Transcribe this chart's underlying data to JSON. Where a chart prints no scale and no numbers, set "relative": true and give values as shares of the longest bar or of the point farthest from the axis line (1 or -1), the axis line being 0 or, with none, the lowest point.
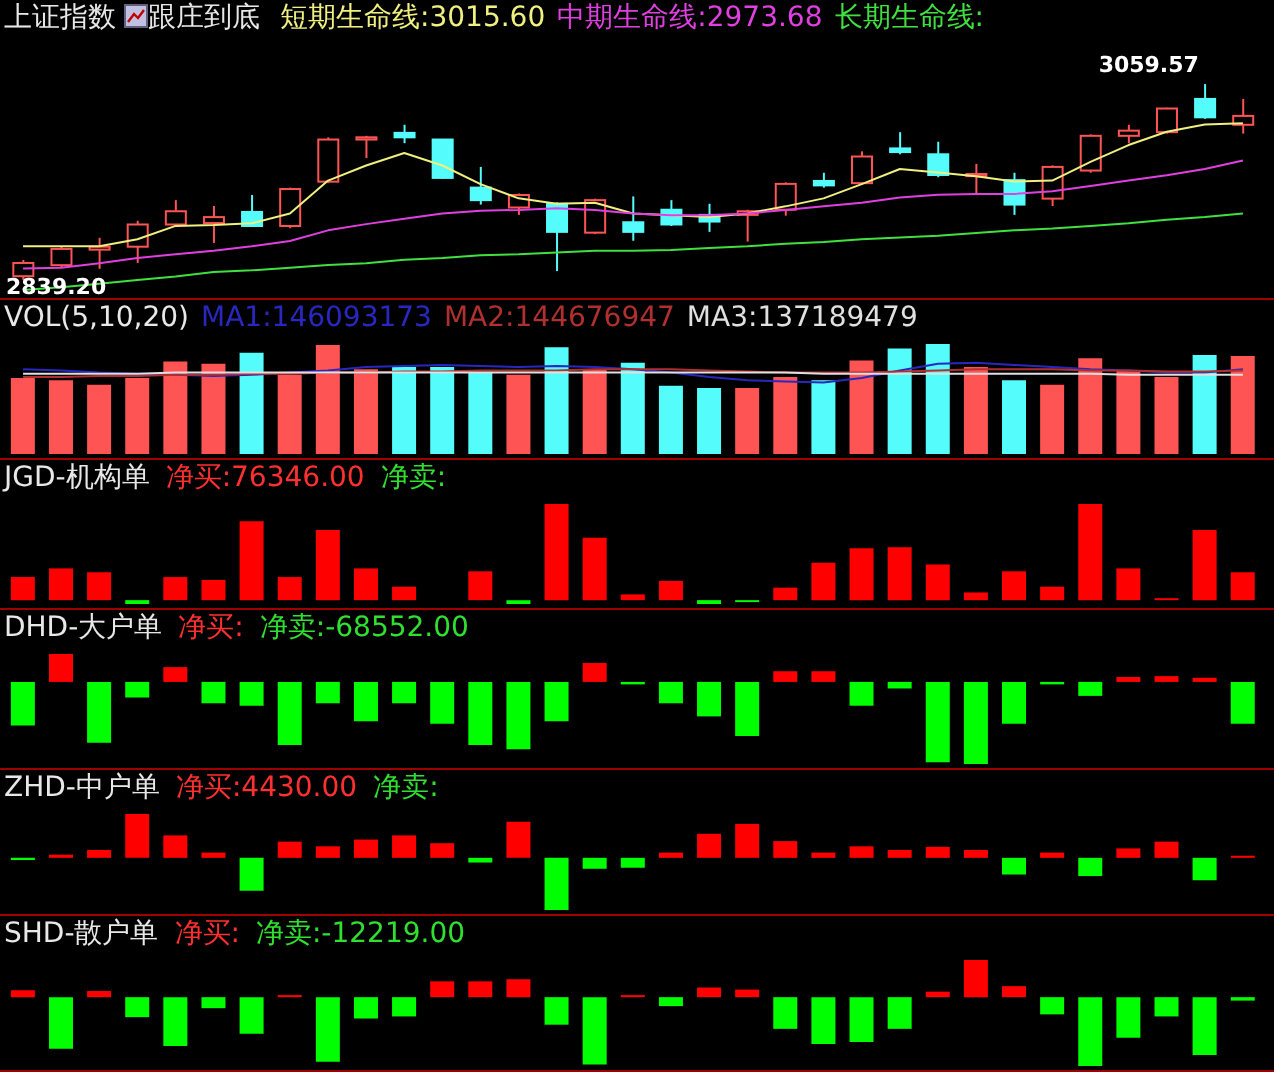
{
  "chart_data": [
    {
      "type": "candlestick",
      "title": "上证指数",
      "subtitle": "跟庄到底",
      "legend": "top",
      "categories": [
        null,
        null,
        null,
        null,
        null,
        null,
        null,
        null,
        null,
        null,
        null,
        null,
        null,
        null,
        null,
        null,
        null,
        null,
        null,
        null,
        null,
        null,
        null,
        null,
        null,
        null,
        null,
        null,
        null,
        null,
        null,
        null,
        null
      ],
      "ohlc": [
        [
          2843.4,
          2861.7,
          2839.2,
          2858.3
        ],
        [
          2855.8,
          2876.6,
          2853.3,
          2874.1
        ],
        [
          2873.3,
          2886.6,
          2851.7,
          2876.6
        ],
        [
          2876.6,
          2905.7,
          2858.3,
          2901.6
        ],
        [
          2901.6,
          2929.0,
          2899.9,
          2916.5
        ],
        [
          2903.2,
          2922.4,
          2880.8,
          2909.9
        ],
        [
          2915.7,
          2934.8,
          2899.9,
          2899.9
        ],
        [
          2899.9,
          2943.1,
          2897.4,
          2941.5
        ],
        [
          2949.8,
          2999.7,
          2948.1,
          2997.2
        ],
        [
          2997.2,
          3001.4,
          2976.4,
          2999.7
        ],
        [
          3004.7,
          3013.8,
          2993.1,
          2999.7
        ],
        [
          2997.2,
          2997.2,
          2953.1,
          2954.0
        ],
        [
          2943.1,
          2966.4,
          2924.0,
          2929.0
        ],
        [
          2920.7,
          2936.5,
          2912.4,
          2934.8
        ],
        [
          2924.9,
          2926.5,
          2849.2,
          2893.3
        ],
        [
          2892.4,
          2930.7,
          2890.8,
          2929.0
        ],
        [
          2904.1,
          2933.2,
          2883.3,
          2893.3
        ],
        [
          2918.2,
          2929.0,
          2899.9,
          2901.6
        ],
        [
          2912.4,
          2924.9,
          2893.3,
          2904.9
        ],
        [
          2912.4,
          2918.2,
          2882.4,
          2916.5
        ],
        [
          2918.2,
          2949.0,
          2911.5,
          2947.3
        ],
        [
          2950.6,
          2959.8,
          2943.1,
          2945.6
        ],
        [
          2948.1,
          2983.9,
          2946.5,
          2978.1
        ],
        [
          2987.2,
          3005.5,
          2980.6,
          2983.1
        ],
        [
          2980.6,
          2994.7,
          2954.8,
          2957.3
        ],
        [
          2956.0,
          2969.8,
          2934.8,
          2958.4
        ],
        [
          2951.5,
          2959.8,
          2912.4,
          2924.0
        ],
        [
          2930.7,
          2968.1,
          2922.4,
          2966.4
        ],
        [
          2962.3,
          3003.0,
          2959.8,
          3001.4
        ],
        [
          3001.4,
          3013.8,
          2993.1,
          3007.2
        ],
        [
          3005.5,
          3033.0,
          3003.9,
          3032.1
        ],
        [
          3042.9,
          3059.57,
          3020.5,
          3022.2
        ],
        [
          3013.8,
          3042.9,
          3003.9,
          3023.8
        ]
      ],
      "colors": [
        "#ff5454",
        "#ff5454",
        "#ff5454",
        "#ff5454",
        "#ff5454",
        "#ff5454",
        "#54fcfc",
        "#ff5454",
        "#ff5454",
        "#ff5454",
        "#54fcfc",
        "#54fcfc",
        "#54fcfc",
        "#ff5454",
        "#54fcfc",
        "#ff5454",
        "#54fcfc",
        "#54fcfc",
        "#54fcfc",
        "#ff5454",
        "#ff5454",
        "#54fcfc",
        "#ff5454",
        "#54fcfc",
        "#54fcfc",
        "#ff5454",
        "#54fcfc",
        "#ff5454",
        "#ff5454",
        "#ff5454",
        "#ff5454",
        "#54fcfc",
        "#ff5454"
      ],
      "series": [
        {
          "name": "短期生命线:3015.60",
          "type": "line",
          "color": "#f0f080",
          "values": [
            2877,
            2877,
            2877,
            2885,
            2900,
            2901,
            2903,
            2914,
            2951,
            2968,
            2982,
            2968,
            2947,
            2931,
            2925,
            2926,
            2914,
            2912,
            2910,
            2914,
            2922,
            2931,
            2947,
            2964,
            2960,
            2956,
            2950,
            2951,
            2972,
            2991,
            3006,
            3014,
            3015.6
          ]
        },
        {
          "name": "中期生命线:2973.68",
          "type": "line",
          "color": "#e040e0",
          "values": [
            2852,
            2853,
            2858,
            2864,
            2868,
            2872,
            2877,
            2883,
            2895,
            2902,
            2908,
            2914,
            2917,
            2918,
            2920,
            2918,
            2914,
            2912,
            2912,
            2914,
            2918,
            2922,
            2926,
            2932,
            2935,
            2936,
            2936,
            2939,
            2945,
            2951,
            2957,
            2964,
            2973.68
          ]
        },
        {
          "name": "长期生命线:",
          "type": "line",
          "color": "#40e040",
          "values": [
            2828,
            2831,
            2835,
            2839,
            2843,
            2848,
            2850,
            2853,
            2856,
            2858,
            2862,
            2864,
            2867,
            2868,
            2870,
            2872,
            2872,
            2873,
            2875,
            2877,
            2880,
            2882,
            2885,
            2887,
            2889,
            2892,
            2895,
            2897,
            2900,
            2903,
            2907,
            2910,
            2914
          ]
        }
      ],
      "annotations": [
        "3059.57",
        "2839.20"
      ]
    },
    {
      "type": "bar",
      "title": "VOL(5,10,20)",
      "relative": true,
      "legend": "top",
      "categories": [
        null,
        null,
        null,
        null,
        null,
        null,
        null,
        null,
        null,
        null,
        null,
        null,
        null,
        null,
        null,
        null,
        null,
        null,
        null,
        null,
        null,
        null,
        null,
        null,
        null,
        null,
        null,
        null,
        null,
        null,
        null,
        null,
        null
      ],
      "values": [
        0.69,
        0.67,
        0.63,
        0.69,
        0.84,
        0.82,
        0.92,
        0.72,
        0.99,
        0.77,
        0.79,
        0.79,
        0.74,
        0.72,
        0.97,
        0.77,
        0.83,
        0.62,
        0.6,
        0.6,
        0.7,
        0.67,
        0.85,
        0.96,
        1,
        0.79,
        0.67,
        0.63,
        0.87,
        0.76,
        0.7,
        0.9,
        0.89
      ],
      "colors": [
        "#ff5454",
        "#ff5454",
        "#ff5454",
        "#ff5454",
        "#ff5454",
        "#ff5454",
        "#54fcfc",
        "#ff5454",
        "#ff5454",
        "#ff5454",
        "#54fcfc",
        "#54fcfc",
        "#54fcfc",
        "#ff5454",
        "#54fcfc",
        "#ff5454",
        "#54fcfc",
        "#54fcfc",
        "#54fcfc",
        "#ff5454",
        "#ff5454",
        "#54fcfc",
        "#ff5454",
        "#54fcfc",
        "#54fcfc",
        "#ff5454",
        "#54fcfc",
        "#ff5454",
        "#ff5454",
        "#ff5454",
        "#ff5454",
        "#54fcfc",
        "#ff5454"
      ],
      "series": [
        {
          "name": "MA1:146093173",
          "type": "line",
          "color": "#2828c0",
          "values": [
            0.77,
            0.76,
            0.74,
            0.73,
            0.72,
            0.71,
            0.72,
            0.74,
            0.76,
            0.79,
            0.8,
            0.81,
            0.8,
            0.79,
            0.8,
            0.79,
            0.77,
            0.74,
            0.7,
            0.67,
            0.66,
            0.65,
            0.69,
            0.76,
            0.82,
            0.83,
            0.81,
            0.79,
            0.77,
            0.76,
            0.74,
            0.74,
            0.77
          ]
        },
        {
          "name": "MA2:144676947",
          "type": "line",
          "color": "#b03030",
          "values": [
            0.7,
            0.7,
            0.71,
            0.71,
            0.72,
            0.72,
            0.73,
            0.73,
            0.74,
            0.74,
            0.75,
            0.75,
            0.76,
            0.76,
            0.76,
            0.77,
            0.77,
            0.77,
            0.76,
            0.75,
            0.74,
            0.74,
            0.74,
            0.75,
            0.76,
            0.77,
            0.77,
            0.77,
            0.76,
            0.76,
            0.75,
            0.75,
            0.76
          ]
        },
        {
          "name": "MA3:137189479",
          "type": "line",
          "color": "#e0e0e0",
          "values": [
            0.73,
            0.73,
            0.73,
            0.73,
            0.74,
            0.74,
            0.74,
            0.74,
            0.74,
            0.74,
            0.74,
            0.74,
            0.74,
            0.74,
            0.74,
            0.74,
            0.74,
            0.74,
            0.74,
            0.74,
            0.74,
            0.73,
            0.73,
            0.73,
            0.73,
            0.73,
            0.73,
            0.73,
            0.73,
            0.72,
            0.72,
            0.72,
            0.72
          ]
        }
      ]
    },
    {
      "type": "bar",
      "title": "JGD-机构单",
      "relative": true,
      "annotations": [
        "净买:76346.00",
        "净卖:"
      ],
      "categories": [
        null,
        null,
        null,
        null,
        null,
        null,
        null,
        null,
        null,
        null,
        null,
        null,
        null,
        null,
        null,
        null,
        null,
        null,
        null,
        null,
        null,
        null,
        null,
        null,
        null,
        null,
        null,
        null,
        null,
        null,
        null,
        null,
        null
      ],
      "values": [
        0.24,
        0.33,
        0.29,
        -0.04,
        0.24,
        0.21,
        0.82,
        0.24,
        0.73,
        0.33,
        0.14,
        0,
        0.3,
        -0.04,
        1,
        0.65,
        0.06,
        0.2,
        -0.04,
        -0.02,
        0.13,
        0.39,
        0.54,
        0.55,
        0.37,
        0.08,
        0.3,
        0.14,
        1,
        0.33,
        0.02,
        0.73,
        0.29
      ],
      "colors": [
        "#ff0000",
        "#ff0000",
        "#ff0000",
        "#00ff00",
        "#ff0000",
        "#ff0000",
        "#ff0000",
        "#ff0000",
        "#ff0000",
        "#ff0000",
        "#ff0000",
        "#ff0000",
        "#ff0000",
        "#00ff00",
        "#ff0000",
        "#ff0000",
        "#ff0000",
        "#ff0000",
        "#00ff00",
        "#00ff00",
        "#ff0000",
        "#ff0000",
        "#ff0000",
        "#ff0000",
        "#ff0000",
        "#ff0000",
        "#ff0000",
        "#ff0000",
        "#ff0000",
        "#ff0000",
        "#ff0000",
        "#ff0000",
        "#ff0000"
      ]
    },
    {
      "type": "bar",
      "title": "DHD-大户单",
      "relative": true,
      "annotations": [
        "净买:",
        "净卖:-68552.00"
      ],
      "categories": [
        null,
        null,
        null,
        null,
        null,
        null,
        null,
        null,
        null,
        null,
        null,
        null,
        null,
        null,
        null,
        null,
        null,
        null,
        null,
        null,
        null,
        null,
        null,
        null,
        null,
        null,
        null,
        null,
        null,
        null,
        null,
        null,
        null
      ],
      "values": [
        -0.53,
        0.34,
        -0.74,
        -0.19,
        0.18,
        -0.26,
        -0.29,
        -0.77,
        -0.26,
        -0.48,
        -0.26,
        -0.51,
        -0.77,
        -0.82,
        -0.48,
        0.23,
        -0.03,
        -0.26,
        -0.42,
        -0.66,
        0.13,
        0.13,
        -0.29,
        -0.08,
        -0.98,
        -1,
        -0.51,
        -0.03,
        -0.17,
        0.06,
        0.07,
        0.05,
        -0.51
      ],
      "colors": [
        "#00ff00",
        "#ff0000",
        "#00ff00",
        "#00ff00",
        "#ff0000",
        "#00ff00",
        "#00ff00",
        "#00ff00",
        "#00ff00",
        "#00ff00",
        "#00ff00",
        "#00ff00",
        "#00ff00",
        "#00ff00",
        "#00ff00",
        "#ff0000",
        "#00ff00",
        "#00ff00",
        "#00ff00",
        "#00ff00",
        "#ff0000",
        "#ff0000",
        "#00ff00",
        "#00ff00",
        "#00ff00",
        "#00ff00",
        "#00ff00",
        "#00ff00",
        "#00ff00",
        "#ff0000",
        "#ff0000",
        "#ff0000",
        "#00ff00"
      ]
    },
    {
      "type": "bar",
      "title": "ZHD-中户单",
      "relative": true,
      "annotations": [
        "净买:4430.00",
        "净卖:"
      ],
      "categories": [
        null,
        null,
        null,
        null,
        null,
        null,
        null,
        null,
        null,
        null,
        null,
        null,
        null,
        null,
        null,
        null,
        null,
        null,
        null,
        null,
        null,
        null,
        null,
        null,
        null,
        null,
        null,
        null,
        null,
        null,
        null,
        null,
        null
      ],
      "values": [
        -0.04,
        0.06,
        0.15,
        0.84,
        0.43,
        0.1,
        -0.63,
        0.31,
        0.22,
        0.35,
        0.43,
        0.28,
        -0.09,
        0.69,
        -1,
        -0.21,
        -0.19,
        0.1,
        0.46,
        0.65,
        0.32,
        0.1,
        0.22,
        0.15,
        0.21,
        0.15,
        -0.32,
        0.1,
        -0.35,
        0.18,
        0.31,
        -0.43,
        0.04
      ],
      "colors": [
        "#00ff00",
        "#ff0000",
        "#ff0000",
        "#ff0000",
        "#ff0000",
        "#ff0000",
        "#00ff00",
        "#ff0000",
        "#ff0000",
        "#ff0000",
        "#ff0000",
        "#ff0000",
        "#00ff00",
        "#ff0000",
        "#00ff00",
        "#00ff00",
        "#00ff00",
        "#ff0000",
        "#ff0000",
        "#ff0000",
        "#ff0000",
        "#ff0000",
        "#ff0000",
        "#ff0000",
        "#ff0000",
        "#ff0000",
        "#00ff00",
        "#ff0000",
        "#00ff00",
        "#ff0000",
        "#ff0000",
        "#00ff00",
        "#ff0000"
      ]
    },
    {
      "type": "bar",
      "title": "SHD-散户单",
      "relative": true,
      "annotations": [
        "净买:",
        "净卖:-12219.00"
      ],
      "categories": [
        null,
        null,
        null,
        null,
        null,
        null,
        null,
        null,
        null,
        null,
        null,
        null,
        null,
        null,
        null,
        null,
        null,
        null,
        null,
        null,
        null,
        null,
        null,
        null,
        null,
        null,
        null,
        null,
        null,
        null,
        null,
        null,
        null
      ],
      "values": [
        0.1,
        -0.75,
        0.09,
        -0.29,
        -0.71,
        -0.16,
        -0.53,
        0.03,
        -0.94,
        -0.31,
        -0.28,
        0.23,
        0.23,
        0.26,
        -0.4,
        -0.98,
        0.03,
        -0.13,
        0.14,
        0.11,
        -0.46,
        -0.68,
        -0.65,
        -0.46,
        0.08,
        0.54,
        0.16,
        -0.25,
        -1,
        -0.59,
        -0.28,
        -0.84,
        -0.05
      ],
      "colors": [
        "#ff0000",
        "#00ff00",
        "#ff0000",
        "#00ff00",
        "#00ff00",
        "#00ff00",
        "#00ff00",
        "#ff0000",
        "#00ff00",
        "#00ff00",
        "#00ff00",
        "#ff0000",
        "#ff0000",
        "#ff0000",
        "#00ff00",
        "#00ff00",
        "#ff0000",
        "#00ff00",
        "#ff0000",
        "#ff0000",
        "#00ff00",
        "#00ff00",
        "#00ff00",
        "#00ff00",
        "#ff0000",
        "#ff0000",
        "#ff0000",
        "#00ff00",
        "#00ff00",
        "#00ff00",
        "#00ff00",
        "#00ff00",
        "#00ff00"
      ]
    }
  ]
}
